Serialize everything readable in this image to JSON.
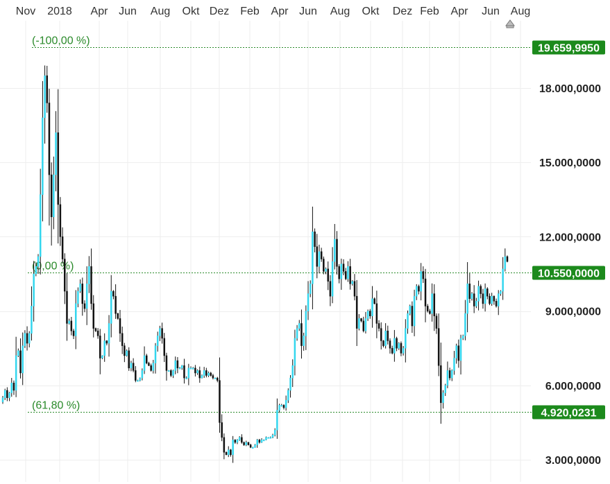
{
  "chart_data": {
    "type": "candlestick",
    "x_ticks": [
      "Nov",
      "2018",
      "Apr",
      "Jun",
      "Aug",
      "Okt",
      "Dez",
      "Feb",
      "Apr",
      "Jun",
      "Aug",
      "Okt",
      "Dez",
      "Feb",
      "Apr",
      "Jun",
      "Aug"
    ],
    "y_ticks": [
      "3.000,0000",
      "6.000,0000",
      "9.000,0000",
      "12.000,0000",
      "15.000,0000",
      "18.000,0000"
    ],
    "y_tick_values": [
      3000,
      6000,
      9000,
      12000,
      15000,
      18000
    ],
    "ylim": [
      2200,
      20000
    ],
    "grid": true,
    "fib_levels": [
      {
        "label": "(-100,00 %)",
        "value": 19659.995,
        "value_label": "19.659,9950"
      },
      {
        "label": "(0,00 %)",
        "value": 10550.0,
        "value_label": "10.550,0000"
      },
      {
        "label": "(61,80 %)",
        "value": 4920.0231,
        "value_label": "4.920,0231"
      }
    ],
    "colors": {
      "up": "#33d6ee",
      "down": "#111111",
      "wick": "#111111",
      "fib": "#2a8a2a",
      "badge_bg": "#1c8a1c",
      "grid": "#eeeeee"
    },
    "candles_close": [
      5500,
      5800,
      5500,
      5700,
      6100,
      5800,
      7200,
      7400,
      6500,
      7600,
      8100,
      7700,
      8100,
      9200,
      10500,
      10800,
      11200,
      13700,
      16800,
      18500,
      17400,
      14500,
      12800,
      14500,
      16200,
      13300,
      12000,
      11100,
      9800,
      8500,
      8600,
      8200,
      8000,
      9300,
      9800,
      10100,
      9300,
      9100,
      10100,
      10800,
      9300,
      8300,
      8200,
      8000,
      7100,
      7200,
      7800,
      7700,
      8500,
      9800,
      9600,
      8900,
      8700,
      8100,
      7600,
      7200,
      7400,
      6700,
      6900,
      6600,
      6200,
      6200,
      6300,
      6600,
      7200,
      6900,
      6800,
      6600,
      6900,
      7600,
      8000,
      8300,
      7900,
      7200,
      6600,
      6600,
      6400,
      6600,
      7000,
      6700,
      6700,
      6800,
      6300,
      6300,
      6700,
      6700,
      6700,
      6500,
      6600,
      6300,
      6400,
      6600,
      6400,
      6500,
      6400,
      6300,
      6300,
      6200,
      4500,
      3900,
      3300,
      3200,
      3400,
      3200,
      3800,
      3700,
      3800,
      3900,
      3700,
      3600,
      3700,
      3600,
      3500,
      3500,
      3600,
      3800,
      3700,
      3800,
      3800,
      3900,
      3900,
      3900,
      4000,
      4200,
      5000,
      5200,
      5200,
      5100,
      5400,
      5800,
      6300,
      6800,
      7900,
      8300,
      8500,
      7600,
      8000,
      9000,
      9700,
      10100,
      12200,
      11600,
      10800,
      11400,
      11100,
      10600,
      10700,
      10200,
      9600,
      11000,
      11900,
      10800,
      10300,
      10900,
      10600,
      10300,
      10800,
      10100,
      10200,
      9600,
      8300,
      8700,
      8600,
      8200,
      8700,
      9000,
      8800,
      9500,
      9300,
      8500,
      8300,
      7800,
      7600,
      8200,
      7800,
      7500,
      7300,
      7900,
      7500,
      7700,
      7300,
      7500,
      8300,
      8900,
      9200,
      8400,
      9600,
      10000,
      9800,
      10600,
      10300,
      9200,
      9000,
      8900,
      9700,
      8800,
      8300,
      6800,
      5300,
      5700,
      6000,
      6600,
      6300,
      6600,
      7100,
      7600,
      7000,
      7900,
      8000,
      8900,
      10100,
      9500,
      9700,
      9200,
      9400,
      10000,
      9700,
      9300,
      9900,
      9600,
      9300,
      9600,
      9400,
      9200,
      9700,
      9800,
      10700,
      11200,
      11000
    ]
  }
}
